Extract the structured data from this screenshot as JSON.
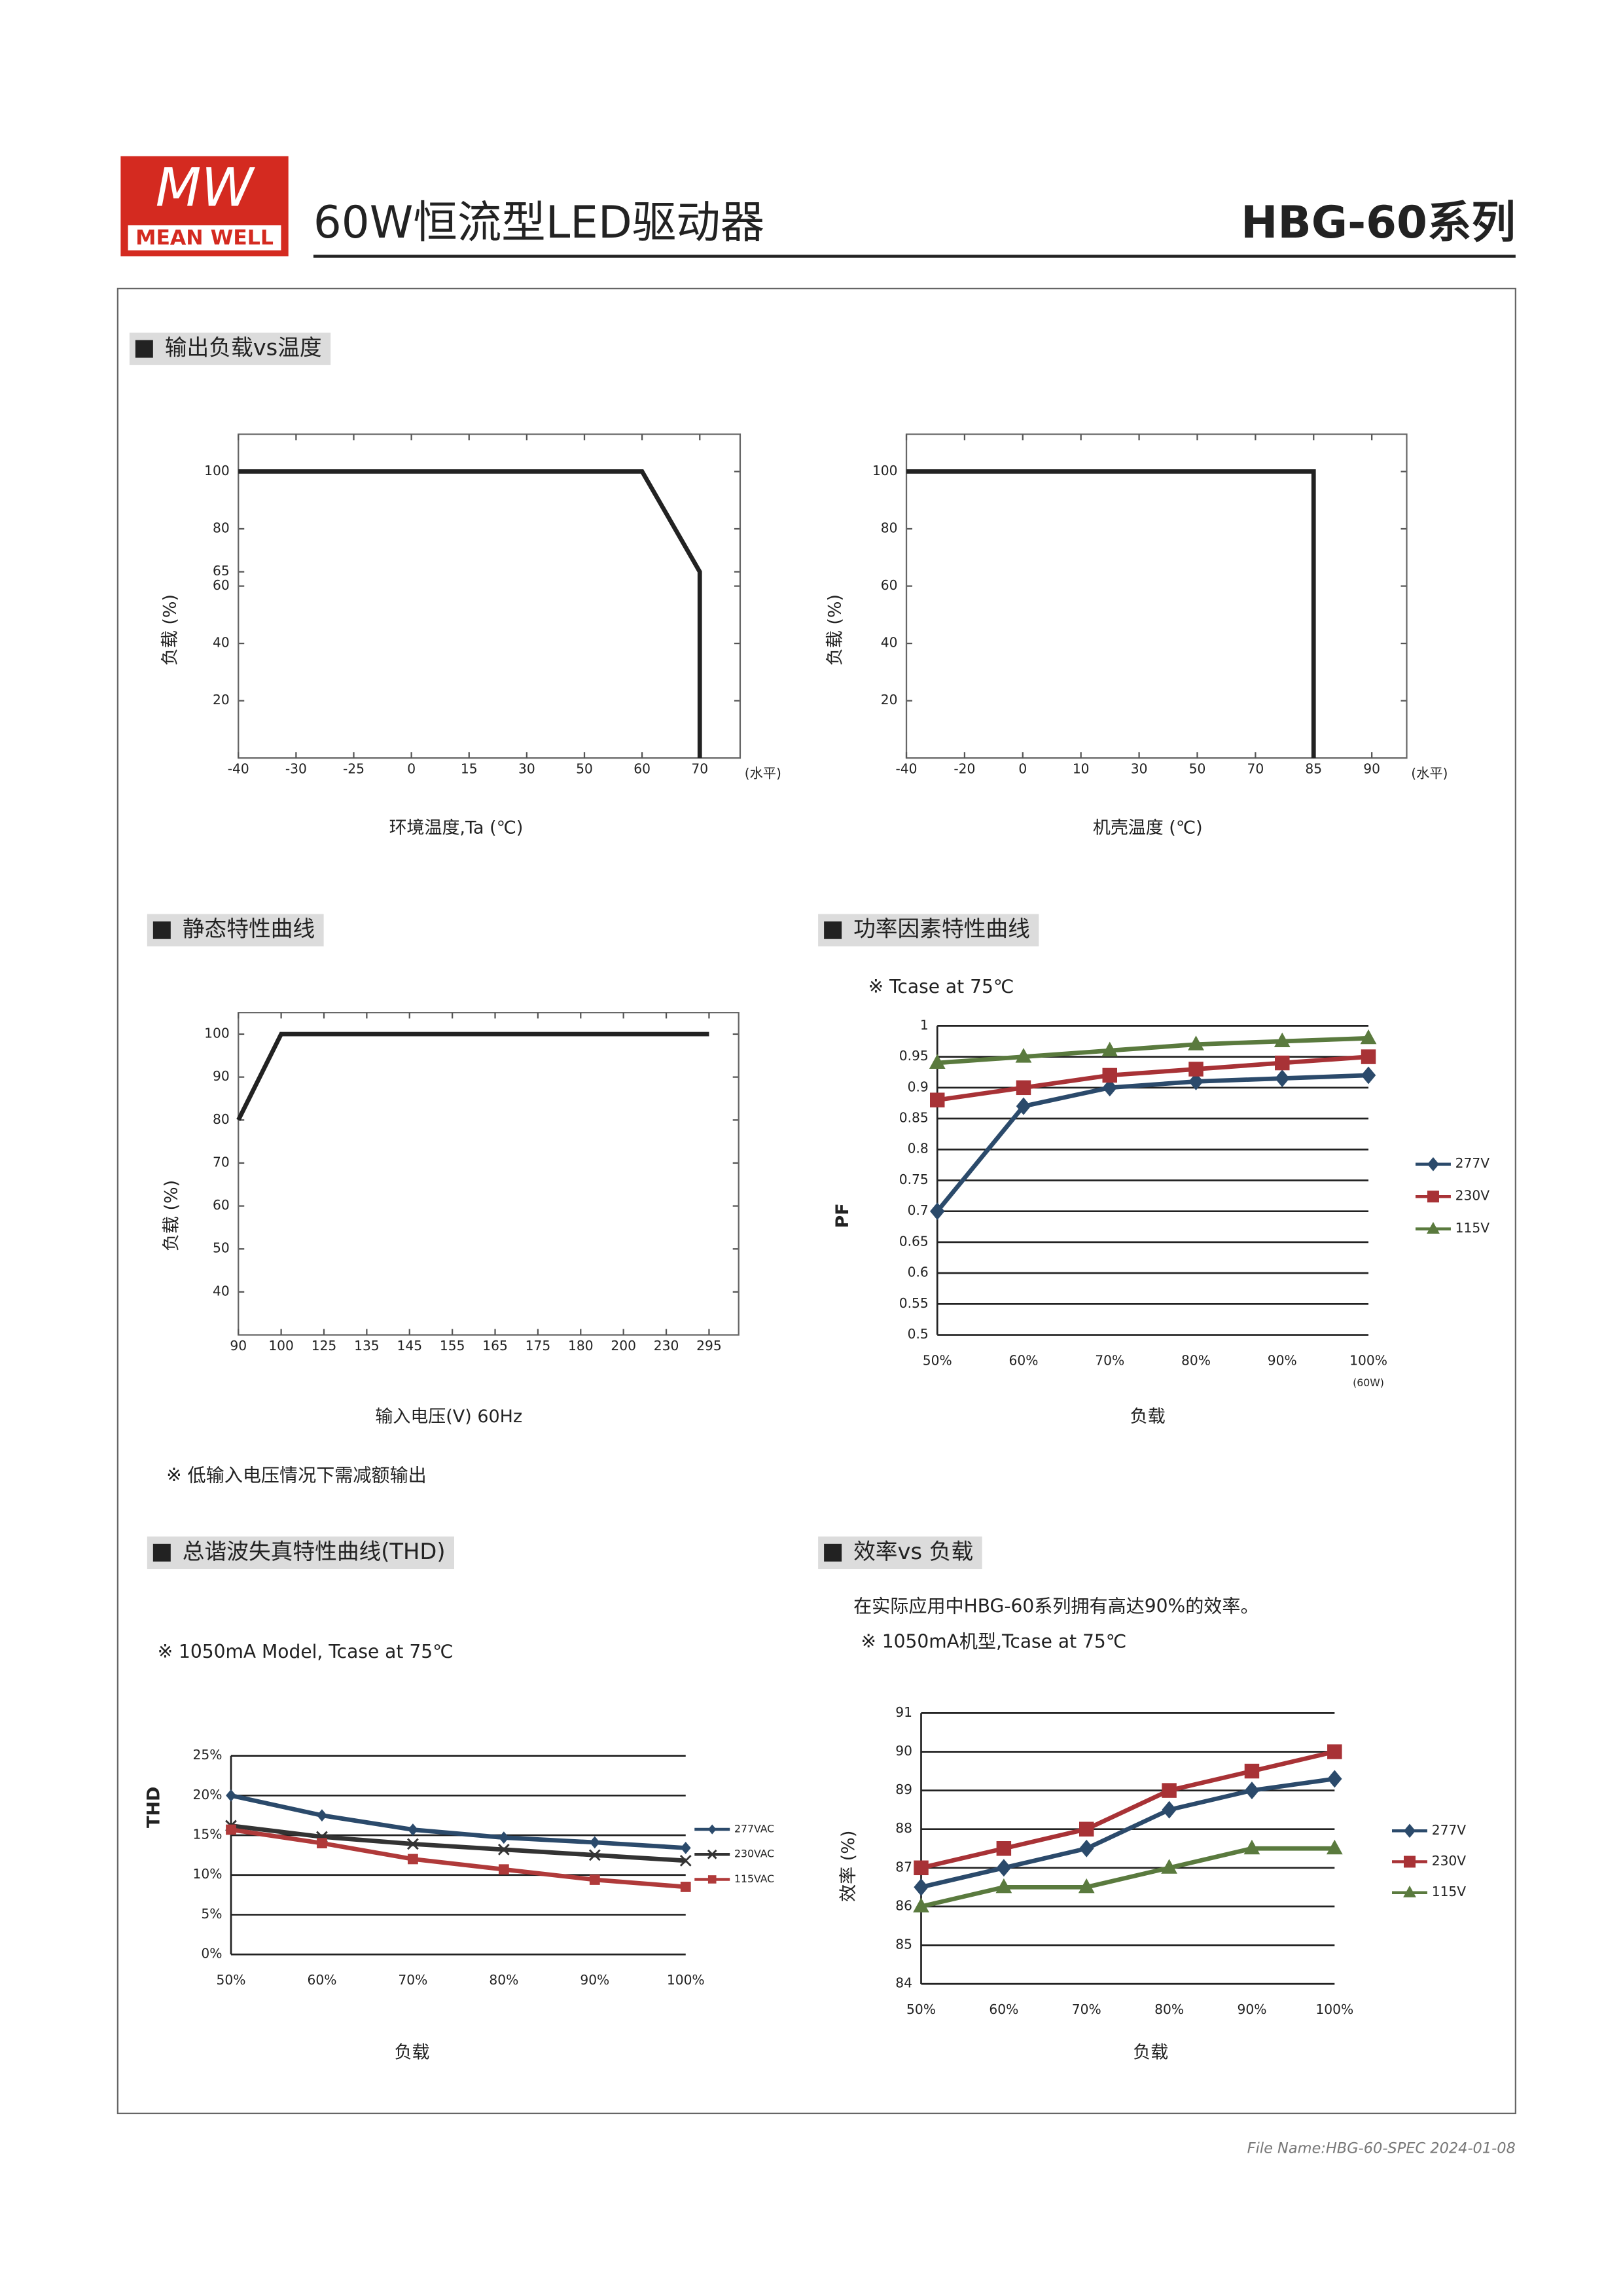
{
  "header": {
    "logo_mark": "MW",
    "brand": "MEAN WELL",
    "title": "60W恒流型LED驱动器",
    "model": "HBG-60系列"
  },
  "footer": "File Name:HBG-60-SPEC   2024-01-08",
  "chart_data": [
    {
      "type": "line",
      "title": "输出负载vs温度",
      "xlabel": "环境温度,Ta (℃)",
      "ylabel": "负载 (%)",
      "x_suffix": "(水平)",
      "x": [
        -40,
        60,
        70,
        70
      ],
      "values": [
        100,
        100,
        65,
        0
      ],
      "color": "#222222",
      "xlim": [
        -40,
        77
      ],
      "xticks": [
        -40,
        -30,
        -25,
        0,
        15,
        30,
        50,
        60,
        70
      ],
      "ylim": [
        0,
        113
      ],
      "yticks": [
        20,
        40,
        60,
        65,
        80,
        100
      ],
      "grid": false
    },
    {
      "type": "line",
      "xlabel": "机壳温度 (℃)",
      "ylabel": "负载 (%)",
      "x_suffix": "(水平)",
      "x": [
        -40,
        85,
        85
      ],
      "values": [
        100,
        100,
        0
      ],
      "color": "#222222",
      "xlim": [
        -40,
        93
      ],
      "xticks": [
        -40,
        -20,
        0,
        10,
        30,
        50,
        70,
        85,
        90
      ],
      "ylim": [
        0,
        113
      ],
      "yticks": [
        20,
        40,
        60,
        80,
        100
      ],
      "grid": false
    },
    {
      "type": "line",
      "title": "静态特性曲线",
      "xlabel": "输入电压(V) 60Hz",
      "ylabel": "负载 (%)",
      "notes": [
        "※ 低输入电压情况下需减额输出"
      ],
      "x": [
        90,
        100,
        295
      ],
      "values": [
        80,
        100,
        100
      ],
      "color": "#222222",
      "xlim": [
        90,
        340
      ],
      "xticks": [
        90,
        100,
        125,
        135,
        145,
        155,
        165,
        175,
        180,
        200,
        230,
        295
      ],
      "ylim": [
        30,
        105
      ],
      "yticks": [
        40,
        50,
        60,
        70,
        80,
        90,
        100
      ],
      "grid": false
    },
    {
      "type": "line",
      "title": "功率因素特性曲线",
      "xlabel": "负载",
      "ylabel": "PF",
      "notes": [
        "※ Tcase at 75℃"
      ],
      "x_note": "(60W)",
      "categories": [
        "50%",
        "60%",
        "70%",
        "80%",
        "90%",
        "100%"
      ],
      "series": [
        {
          "name": "277V",
          "color": "#2b4a6b",
          "marker": "diamond",
          "values": [
            0.7,
            0.87,
            0.9,
            0.91,
            0.915,
            0.92
          ]
        },
        {
          "name": "230V",
          "color": "#a83236",
          "marker": "square",
          "values": [
            0.88,
            0.9,
            0.92,
            0.93,
            0.94,
            0.95
          ]
        },
        {
          "name": "115V",
          "color": "#5a7a3e",
          "marker": "triangle",
          "values": [
            0.94,
            0.95,
            0.96,
            0.97,
            0.975,
            0.98
          ]
        }
      ],
      "ylim": [
        0.5,
        1
      ],
      "yticks": [
        0.5,
        0.55,
        0.6,
        0.65,
        0.7,
        0.75,
        0.8,
        0.85,
        0.9,
        0.95,
        1
      ],
      "grid": true,
      "legend": "right"
    },
    {
      "type": "line",
      "title": "总谐波失真特性曲线(THD)",
      "xlabel": "负载",
      "ylabel": "THD",
      "notes": [
        "※ 1050mA Model, Tcase at 75℃"
      ],
      "categories": [
        "50%",
        "60%",
        "70%",
        "80%",
        "90%",
        "100%"
      ],
      "series": [
        {
          "name": "277VAC",
          "color": "#2b4a6b",
          "marker": "diamond",
          "values": [
            20,
            17.5,
            15.7,
            14.7,
            14.1,
            13.4
          ]
        },
        {
          "name": "230VAC",
          "color": "#333333",
          "marker": "x",
          "values": [
            16.2,
            14.8,
            13.9,
            13.2,
            12.5,
            11.8
          ]
        },
        {
          "name": "115VAC",
          "color": "#b03a3a",
          "marker": "square",
          "values": [
            15.7,
            14,
            12,
            10.7,
            9.4,
            8.5
          ]
        }
      ],
      "ylim": [
        0,
        25
      ],
      "yticks": [
        {
          "value": 0,
          "label": "0%"
        },
        {
          "value": 5,
          "label": "5%"
        },
        {
          "value": 10,
          "label": "10%"
        },
        {
          "value": 15,
          "label": "15%"
        },
        {
          "value": 20,
          "label": "20%"
        },
        {
          "value": 25,
          "label": "25%"
        }
      ],
      "grid": true,
      "legend": "right"
    },
    {
      "type": "line",
      "title": "效率vs 负载",
      "xlabel": "负载",
      "ylabel": "效率 (%)",
      "notes": [
        "在实际应用中HBG-60系列拥有高达90%的效率。",
        "※ 1050mA机型,Tcase at 75℃"
      ],
      "categories": [
        "50%",
        "60%",
        "70%",
        "80%",
        "90%",
        "100%"
      ],
      "series": [
        {
          "name": "277V",
          "color": "#2b4a6b",
          "marker": "diamond",
          "values": [
            86.5,
            87,
            87.5,
            88.5,
            89,
            89.3
          ]
        },
        {
          "name": "230V",
          "color": "#a83236",
          "marker": "square",
          "values": [
            87,
            87.5,
            88,
            89,
            89.5,
            90
          ]
        },
        {
          "name": "115V",
          "color": "#5a7a3e",
          "marker": "triangle",
          "values": [
            86,
            86.5,
            86.5,
            87,
            87.5,
            87.5
          ]
        }
      ],
      "ylim": [
        84,
        91
      ],
      "yticks": [
        84,
        85,
        86,
        87,
        88,
        89,
        90,
        91
      ],
      "grid": true,
      "legend": "right"
    }
  ]
}
